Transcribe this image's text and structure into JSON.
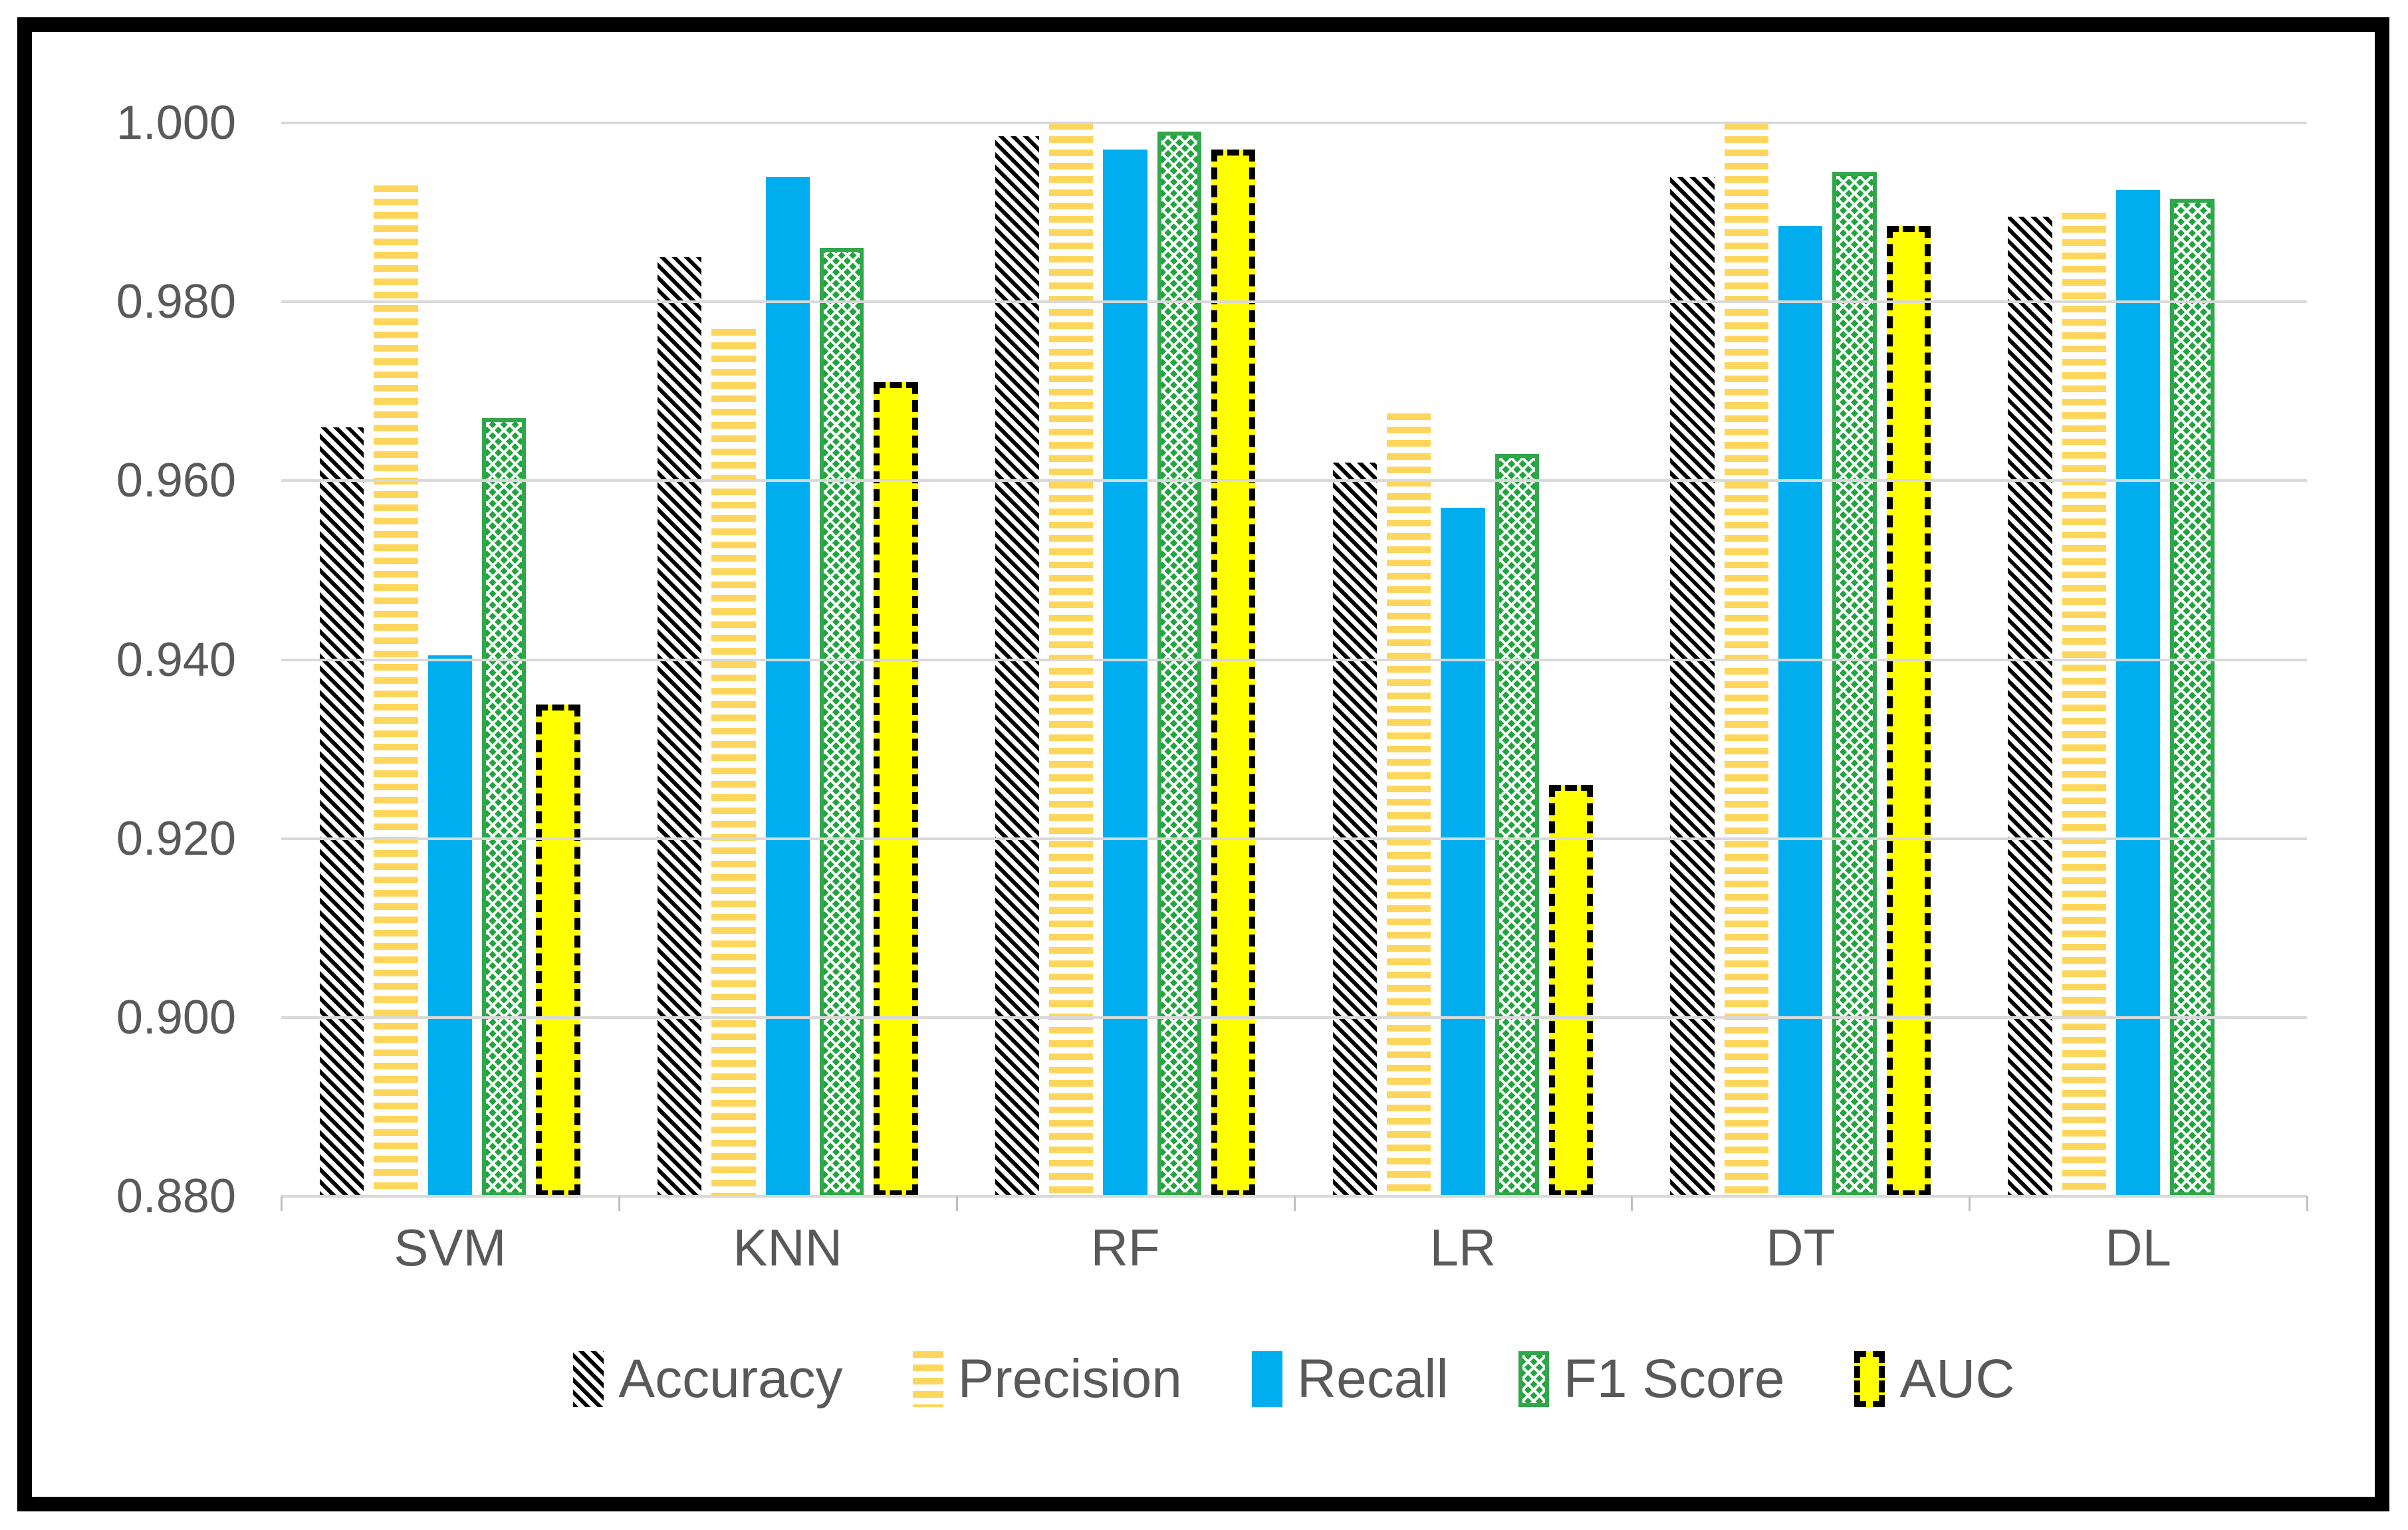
{
  "chart_data": {
    "type": "bar",
    "title": "",
    "categories": [
      "SVM",
      "KNN",
      "RF",
      "LR",
      "DT",
      "DL"
    ],
    "series": [
      {
        "name": "Accuracy",
        "pattern": "diagonal-hatch",
        "color": "#000000",
        "values": [
          0.966,
          0.985,
          0.9985,
          0.962,
          0.994,
          0.9895
        ]
      },
      {
        "name": "Precision",
        "pattern": "horizontal-stripes",
        "color": "#fdd65b",
        "values": [
          0.993,
          0.977,
          1.0,
          0.9675,
          1.0,
          0.99
        ]
      },
      {
        "name": "Recall",
        "pattern": "solid",
        "color": "#00aeef",
        "values": [
          0.9405,
          0.994,
          0.997,
          0.957,
          0.9885,
          0.9925
        ]
      },
      {
        "name": "F1 Score",
        "pattern": "crosshatch",
        "color": "#1ea63c",
        "values": [
          0.967,
          0.986,
          0.999,
          0.963,
          0.9945,
          0.9915
        ]
      },
      {
        "name": "AUC",
        "pattern": "solid-dashed-border",
        "color": "#ffff00",
        "values": [
          0.935,
          0.971,
          0.997,
          0.926,
          0.9885,
          null
        ]
      }
    ],
    "ylim": [
      0.88,
      1.0
    ],
    "ytick_step": 0.02,
    "ytick_labels": [
      "1.000",
      "0.980",
      "0.960",
      "0.940",
      "0.920",
      "0.900",
      "0.880"
    ],
    "xlabel": "",
    "ylabel": "",
    "grid": "horizontal",
    "legend_position": "bottom",
    "colors": {
      "gridline": "#d9d9d9",
      "tick": "#bfbfbf",
      "axis_text": "#595959",
      "frame_border": "#000000",
      "background": "#ffffff"
    }
  }
}
